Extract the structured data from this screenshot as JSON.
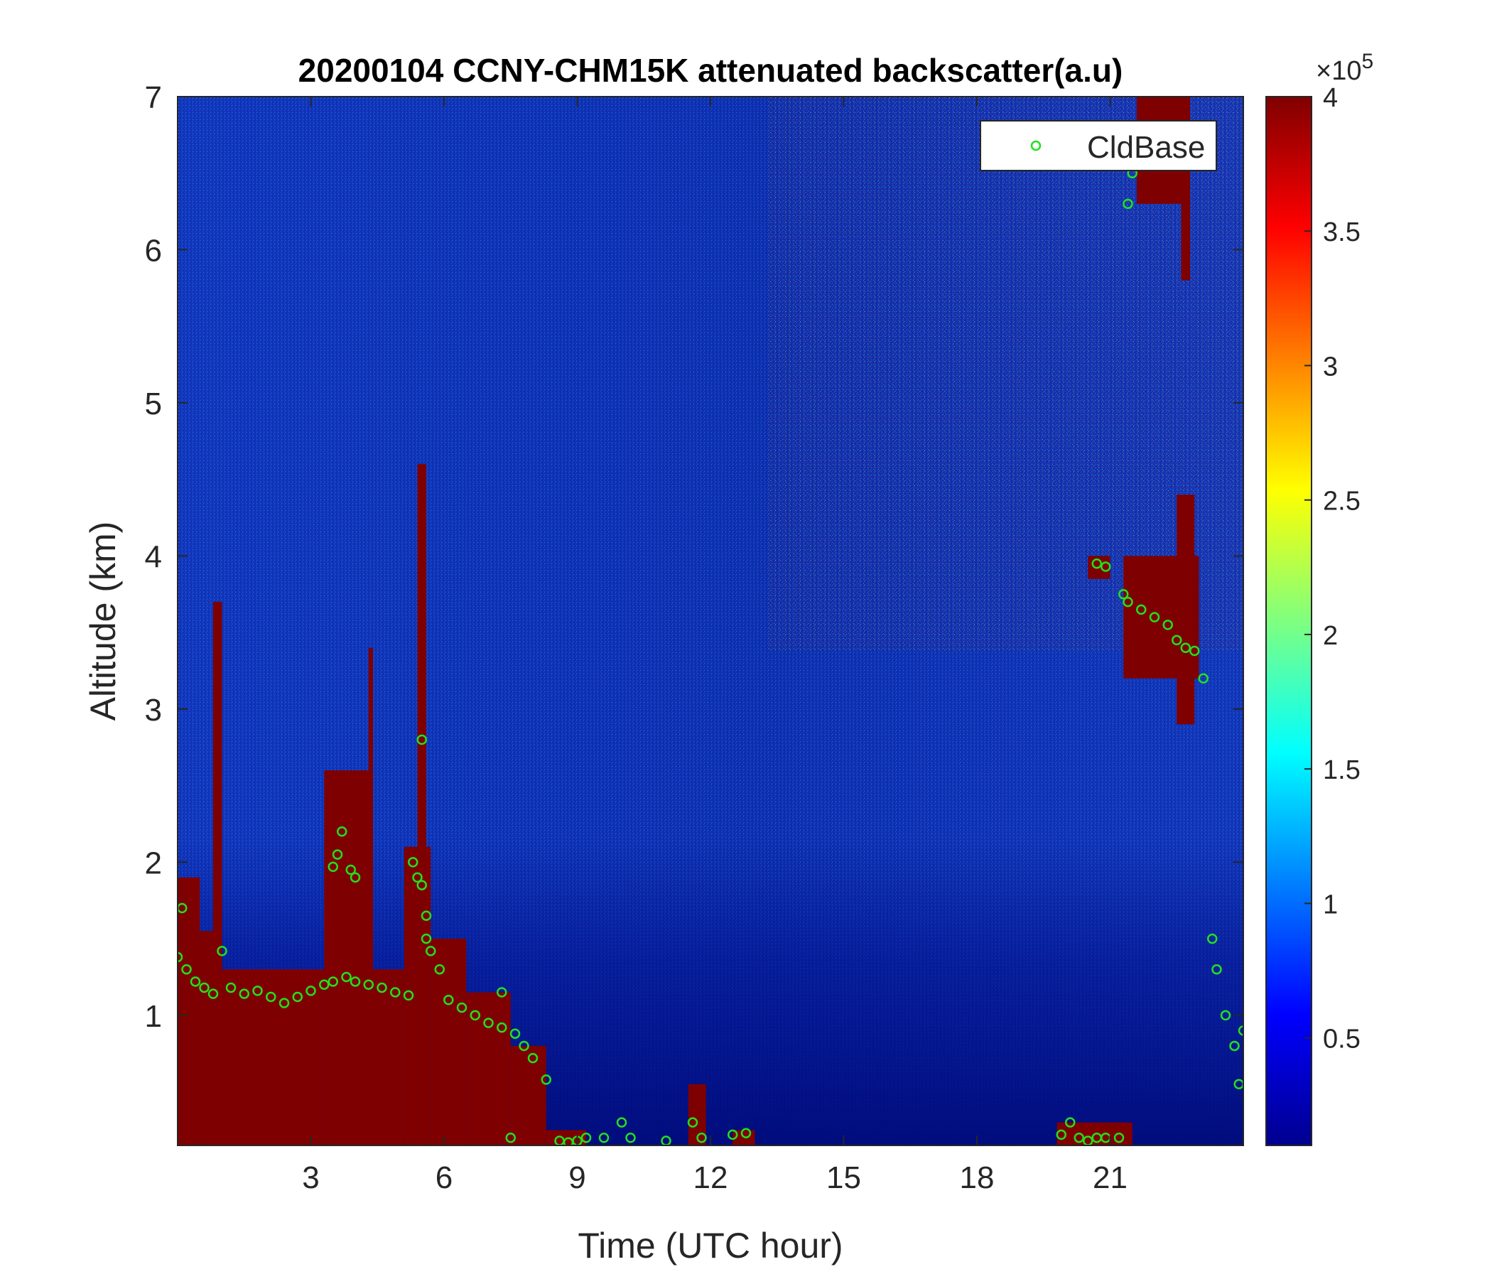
{
  "chart_data": {
    "type": "heatmap",
    "title": "20200104 CCNY-CHM15K attenuated backscatter(a.u)",
    "xlabel": "Time (UTC hour)",
    "ylabel": "Altitude (km)",
    "xlim": [
      0,
      24
    ],
    "ylim": [
      0.15,
      7
    ],
    "x_ticks": [
      3,
      6,
      9,
      12,
      15,
      18,
      21
    ],
    "y_ticks": [
      1,
      2,
      3,
      4,
      5,
      6,
      7
    ],
    "colorbar": {
      "label": "",
      "range": [
        0.1,
        4
      ],
      "ticks": [
        0.5,
        1,
        1.5,
        2,
        2.5,
        3,
        3.5,
        4
      ],
      "multiplier_base": "×10",
      "multiplier_exp": "5",
      "colormap": "jet"
    },
    "legend": {
      "position": "top-right",
      "entries": [
        "CldBase"
      ]
    },
    "cldbase_color": "#22e01e",
    "background_color": "#0b2aa6",
    "cloud_color": "#7f0000",
    "series": [
      {
        "name": "CldBase",
        "x": [
          0.0,
          0.2,
          0.4,
          0.6,
          0.8,
          1.0,
          1.2,
          1.5,
          1.8,
          2.1,
          2.4,
          2.7,
          3.0,
          3.3,
          3.5,
          3.8,
          4.0,
          4.3,
          4.6,
          4.9,
          5.2,
          3.5,
          3.6,
          3.7,
          3.9,
          4.0,
          5.3,
          5.4,
          5.5,
          5.6,
          5.6,
          5.7,
          5.9,
          6.1,
          6.4,
          6.7,
          7.0,
          7.3,
          7.6,
          7.8,
          8.0,
          8.3,
          7.3,
          7.5,
          8.6,
          8.8,
          9.0,
          9.2,
          9.6,
          10.0,
          10.2,
          11.0,
          11.6,
          11.8,
          12.5,
          12.8,
          19.9,
          20.1,
          20.3,
          20.5,
          20.7,
          20.9,
          21.2,
          20.7,
          20.9,
          21.3,
          21.4,
          21.7,
          22.0,
          22.3,
          22.5,
          22.7,
          22.9,
          23.1,
          21.4,
          21.5,
          23.3,
          23.4,
          23.6,
          23.8,
          23.9,
          24.0,
          0.1,
          5.5
        ],
        "y": [
          1.38,
          1.3,
          1.22,
          1.18,
          1.14,
          1.42,
          1.18,
          1.14,
          1.16,
          1.12,
          1.08,
          1.12,
          1.16,
          1.2,
          1.22,
          1.25,
          1.22,
          1.2,
          1.18,
          1.15,
          1.13,
          1.97,
          2.05,
          2.2,
          1.95,
          1.9,
          2.0,
          1.9,
          1.85,
          1.65,
          1.5,
          1.42,
          1.3,
          1.1,
          1.05,
          1.0,
          0.95,
          0.92,
          0.88,
          0.8,
          0.72,
          0.58,
          1.15,
          0.2,
          0.18,
          0.17,
          0.18,
          0.2,
          0.2,
          0.3,
          0.2,
          0.18,
          0.3,
          0.2,
          0.22,
          0.23,
          0.22,
          0.3,
          0.2,
          0.18,
          0.2,
          0.2,
          0.2,
          3.95,
          3.93,
          3.75,
          3.7,
          3.65,
          3.6,
          3.55,
          3.45,
          3.4,
          3.38,
          3.2,
          6.3,
          6.5,
          1.5,
          1.3,
          1.0,
          0.8,
          0.55,
          0.9,
          1.7,
          2.8
        ]
      }
    ],
    "features": [
      {
        "x0": 0.0,
        "x1": 0.5,
        "y0": 0.15,
        "y1": 1.9
      },
      {
        "x0": 0.5,
        "x1": 1.0,
        "y0": 0.15,
        "y1": 1.55
      },
      {
        "x0": 0.8,
        "x1": 1.0,
        "y0": 1.2,
        "y1": 3.7
      },
      {
        "x0": 1.0,
        "x1": 3.3,
        "y0": 0.15,
        "y1": 1.3
      },
      {
        "x0": 3.3,
        "x1": 4.4,
        "y0": 0.15,
        "y1": 2.6
      },
      {
        "x0": 4.4,
        "x1": 5.1,
        "y0": 0.15,
        "y1": 1.3
      },
      {
        "x0": 5.1,
        "x1": 5.7,
        "y0": 0.15,
        "y1": 2.1
      },
      {
        "x0": 5.4,
        "x1": 5.6,
        "y0": 1.2,
        "y1": 4.6
      },
      {
        "x0": 4.3,
        "x1": 4.4,
        "y0": 1.2,
        "y1": 3.4
      },
      {
        "x0": 5.7,
        "x1": 6.5,
        "y0": 0.15,
        "y1": 1.5
      },
      {
        "x0": 6.5,
        "x1": 7.5,
        "y0": 0.15,
        "y1": 1.15
      },
      {
        "x0": 7.5,
        "x1": 8.3,
        "y0": 0.15,
        "y1": 0.8
      },
      {
        "x0": 8.3,
        "x1": 9.2,
        "y0": 0.15,
        "y1": 0.25
      },
      {
        "x0": 11.5,
        "x1": 11.9,
        "y0": 0.15,
        "y1": 0.55
      },
      {
        "x0": 12.5,
        "x1": 13.0,
        "y0": 0.15,
        "y1": 0.25
      },
      {
        "x0": 19.8,
        "x1": 21.5,
        "y0": 0.15,
        "y1": 0.3
      },
      {
        "x0": 20.5,
        "x1": 21.0,
        "y0": 3.85,
        "y1": 4.0
      },
      {
        "x0": 21.3,
        "x1": 23.0,
        "y0": 3.2,
        "y1": 4.0
      },
      {
        "x0": 22.5,
        "x1": 22.9,
        "y0": 2.9,
        "y1": 4.4
      },
      {
        "x0": 21.6,
        "x1": 22.6,
        "y0": 6.3,
        "y1": 7.0
      },
      {
        "x0": 22.6,
        "x1": 22.8,
        "y0": 5.8,
        "y1": 7.0
      }
    ]
  }
}
